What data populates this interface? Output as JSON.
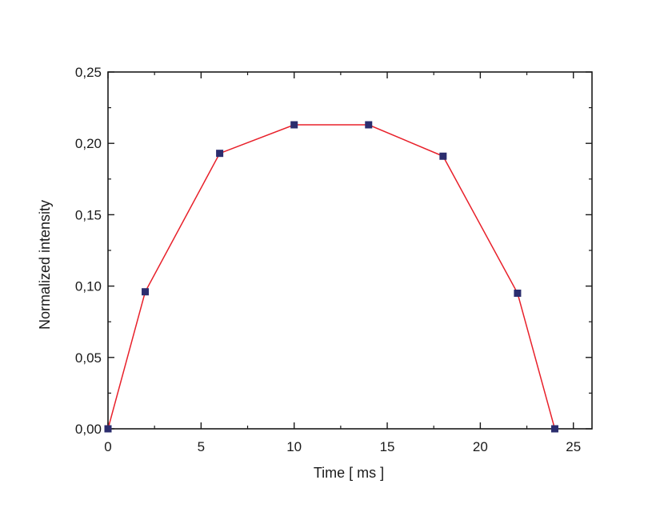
{
  "chart_data": {
    "type": "line",
    "title": "",
    "xlabel": "Time [ ms ]",
    "ylabel": "Normalized intensity",
    "xlim": [
      0,
      26
    ],
    "ylim": [
      0,
      0.25
    ],
    "x_ticks": [
      0,
      5,
      10,
      15,
      20,
      25
    ],
    "x_tick_labels": [
      "0",
      "5",
      "10",
      "15",
      "20",
      "25"
    ],
    "y_ticks": [
      0,
      0.05,
      0.1,
      0.15,
      0.2,
      0.25
    ],
    "y_tick_labels": [
      "0,00",
      "0,05",
      "0,10",
      "0,15",
      "0,20",
      "0,25"
    ],
    "grid": false,
    "legend": "none",
    "series": [
      {
        "x": [
          0,
          2,
          6,
          10,
          14,
          18,
          22,
          24
        ],
        "y": [
          0.0,
          0.096,
          0.193,
          0.213,
          0.213,
          0.191,
          0.095,
          0.0
        ],
        "line_color": "#e8202a",
        "marker_color": "#2b2d6e",
        "marker": "square"
      }
    ]
  }
}
